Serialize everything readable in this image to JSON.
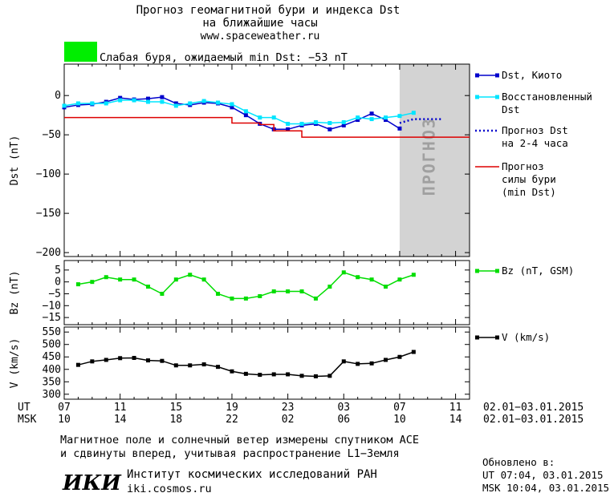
{
  "header": {
    "title_line1": "Прогноз геомагнитной бури и индекса Dst",
    "title_line2": "на ближайшие часы",
    "website": "www.spaceweather.ru",
    "status_text": "Слабая буря, ожидаемый min Dst: −53 nT",
    "status_color": "#00ee00"
  },
  "chart_data": [
    {
      "type": "line",
      "panel": "dst",
      "ylabel": "Dst (nT)",
      "ylim": [
        -205,
        40
      ],
      "yticks": [
        0,
        -50,
        -100,
        -150,
        -200
      ],
      "ytick_labels": [
        "0",
        "−50",
        "−100",
        "−150",
        "−200"
      ],
      "forecast_label": "ПРОГНОЗ",
      "forecast_region_x": [
        31,
        36
      ],
      "series": [
        {
          "name": "Dst, Киото",
          "color": "#0000cc",
          "marker": "square",
          "x": [
            7,
            8,
            9,
            10,
            11,
            12,
            13,
            14,
            15,
            16,
            17,
            18,
            19,
            20,
            21,
            22,
            23,
            24,
            25,
            26,
            27,
            28,
            29,
            30,
            31
          ],
          "y": [
            -15,
            -12,
            -11,
            -8,
            -3,
            -5,
            -4,
            -2,
            -10,
            -12,
            -9,
            -10,
            -15,
            -25,
            -36,
            -43,
            -43,
            -38,
            -36,
            -43,
            -38,
            -31,
            -23,
            -31,
            -42
          ]
        },
        {
          "name": "Восстановленный Dst",
          "color": "#00e5ff",
          "marker": "square",
          "x": [
            7,
            8,
            9,
            10,
            11,
            12,
            13,
            14,
            15,
            16,
            17,
            18,
            19,
            20,
            21,
            22,
            23,
            24,
            25,
            26,
            27,
            28,
            29,
            30,
            31,
            32
          ],
          "y": [
            -13,
            -10,
            -10,
            -10,
            -6,
            -6,
            -8,
            -8,
            -13,
            -10,
            -7,
            -9,
            -11,
            -20,
            -28,
            -28,
            -36,
            -36,
            -34,
            -35,
            -34,
            -28,
            -30,
            -28,
            -26,
            -22
          ]
        },
        {
          "name": "Прогноз Dst на 2-4 часа",
          "color": "#0000cc",
          "style": "dotted",
          "x": [
            31,
            32,
            33,
            34
          ],
          "y": [
            -35,
            -30,
            -30,
            -30
          ]
        },
        {
          "name": "Прогноз силы бури (min Dst)",
          "color": "#dd0000",
          "style": "step",
          "x": [
            7,
            17,
            19,
            21,
            22,
            24,
            36
          ],
          "y": [
            -28,
            -28,
            -35,
            -37,
            -45,
            -53,
            -53
          ]
        }
      ]
    },
    {
      "type": "line",
      "panel": "bz",
      "ylabel": "Bz (nT)",
      "ylim": [
        -18,
        9
      ],
      "yticks": [
        5,
        0,
        -5,
        -10,
        -15
      ],
      "ytick_labels": [
        "5",
        "0",
        "−5",
        "−10",
        "−15"
      ],
      "series": [
        {
          "name": "Bz (nT, GSM)",
          "color": "#00dd00",
          "marker": "square",
          "x": [
            8,
            9,
            10,
            11,
            12,
            13,
            14,
            15,
            16,
            17,
            18,
            19,
            20,
            21,
            22,
            23,
            24,
            25,
            26,
            27,
            28,
            29,
            30,
            31,
            32
          ],
          "y": [
            -1,
            0,
            2,
            1,
            1,
            -2,
            -5,
            1,
            3,
            1,
            -5,
            -7,
            -7,
            -6,
            -4,
            -4,
            -4,
            -7,
            -2,
            4,
            2,
            1,
            -2,
            1,
            3
          ]
        }
      ]
    },
    {
      "type": "line",
      "panel": "v",
      "ylabel": "V (km/s)",
      "ylim": [
        280,
        570
      ],
      "yticks": [
        550,
        500,
        450,
        400,
        350,
        300
      ],
      "ytick_labels": [
        "550",
        "500",
        "450",
        "400",
        "350",
        "300"
      ],
      "series": [
        {
          "name": "V (km/s)",
          "color": "#000000",
          "marker": "square",
          "x": [
            8,
            9,
            10,
            11,
            12,
            13,
            14,
            15,
            16,
            17,
            18,
            19,
            20,
            21,
            22,
            23,
            24,
            25,
            26,
            27,
            28,
            29,
            30,
            31,
            32
          ],
          "y": [
            418,
            432,
            438,
            445,
            446,
            436,
            434,
            416,
            416,
            420,
            410,
            392,
            382,
            378,
            380,
            380,
            374,
            372,
            374,
            432,
            422,
            424,
            438,
            450,
            470
          ]
        }
      ]
    }
  ],
  "time_axis": {
    "xlim": [
      7,
      36
    ],
    "tick_x": [
      7,
      11,
      15,
      19,
      23,
      27,
      31,
      35
    ],
    "ut_label": "UT",
    "msk_label": "MSK",
    "ut_ticks": [
      "07",
      "11",
      "15",
      "19",
      "23",
      "03",
      "07",
      "11"
    ],
    "msk_ticks": [
      "10",
      "14",
      "18",
      "22",
      "02",
      "06",
      "10",
      "14"
    ],
    "date_range_ut": "02.01−03.01.2015",
    "date_range_msk": "02.01−03.01.2015"
  },
  "footer": {
    "note_line1": "Магнитное поле и солнечный ветер измерены спутником ACE",
    "note_line2": "и сдвинуты вперед, учитывая распространение L1−Земля",
    "logo_text": "ИКИ",
    "institute": "Институт космических исследований РАН",
    "institute_site": "iki.cosmos.ru",
    "updated_label": "Обновлено в:",
    "updated_ut": "UT  07:04, 03.01.2015",
    "updated_msk": "MSK 10:04, 03.01.2015"
  }
}
